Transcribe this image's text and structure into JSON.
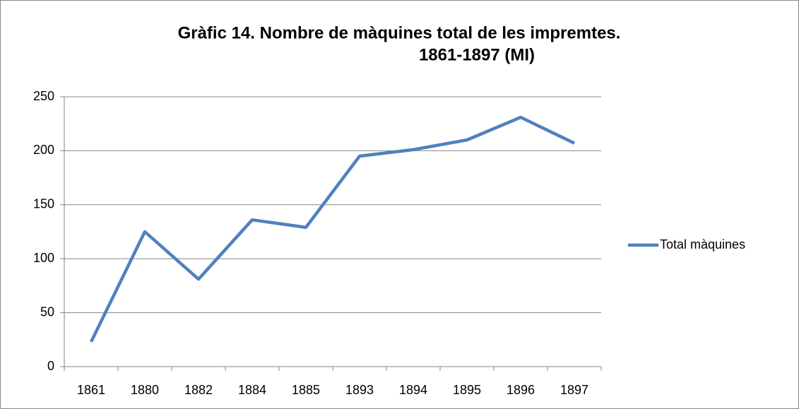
{
  "chart_data": {
    "type": "line",
    "title": [
      "Gràfic 14. Nombre de màquines total de les impremtes.",
      "1861-1897 (MI)"
    ],
    "categories": [
      "1861",
      "1880",
      "1882",
      "1884",
      "1885",
      "1893",
      "1894",
      "1895",
      "1896",
      "1897"
    ],
    "series": [
      {
        "name": "Total màquines",
        "color": "#4f81bd",
        "values": [
          23,
          125,
          81,
          136,
          129,
          195,
          201,
          210,
          231,
          207
        ]
      }
    ],
    "ylim": [
      0,
      250
    ],
    "yticks": [
      0,
      50,
      100,
      150,
      200,
      250
    ],
    "grid": true,
    "legend": "right"
  }
}
